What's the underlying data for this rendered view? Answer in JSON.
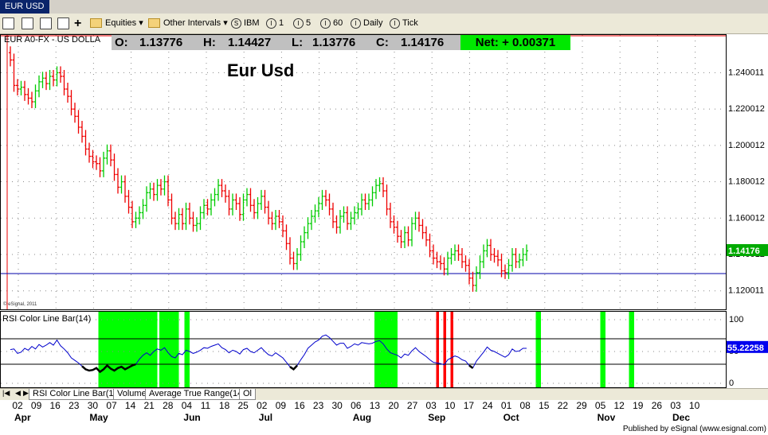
{
  "window": {
    "title": "EUR USD"
  },
  "toolbar": {
    "equities_label": "Equities",
    "interval_label": "Other Intervals",
    "symbol_label": "IBM",
    "int1": "1",
    "int5": "5",
    "int60": "60",
    "daily": "Daily",
    "tick": "Tick"
  },
  "header": {
    "symbol": "EUR A0-FX - US DOLLA",
    "open_label": "O:",
    "open": "1.13776",
    "high_label": "H:",
    "high": "1.14427",
    "low_label": "L:",
    "low": "1.13776",
    "close_label": "C:",
    "close": "1.14176",
    "net_label": "Net:",
    "net": "+ 0.00371",
    "net_color": "#00e800"
  },
  "chart_title": "Eur Usd",
  "copyright": "© eSignal, 2011",
  "rsi_label": "RSI Color Line Bar(14)",
  "tabs": [
    "RSI Color Line Bar(14)",
    "Volume",
    "Average True Range(14)",
    "Ol"
  ],
  "published": "Published by eSignal (www.esignal.com)",
  "colors": {
    "up": "#00cc00",
    "down": "#ee0000",
    "rsi_line": "#0000cc",
    "baseline": "#0000aa",
    "green_zone": "#00ff00",
    "red_zone": "#ff0000"
  },
  "chart_data": [
    {
      "type": "bar",
      "title": "Eur Usd",
      "ylim": [
        1.112,
        1.252
      ],
      "y_ticks": [
        "1.240011",
        "1.220012",
        "1.200012",
        "1.180012",
        "1.160012",
        "1.140012",
        "1.120011"
      ],
      "y_tick_values": [
        1.240011,
        1.220012,
        1.200012,
        1.180012,
        1.160012,
        1.140012,
        1.120011
      ],
      "last_price": "1.14176",
      "horizontal_line": 1.1295,
      "date_labels": [
        "02",
        "09",
        "16",
        "23",
        "30",
        "07",
        "14",
        "21",
        "28",
        "04",
        "11",
        "18",
        "25",
        "02",
        "09",
        "16",
        "23",
        "30",
        "06",
        "13",
        "20",
        "27",
        "03",
        "10",
        "17",
        "24",
        "01",
        "08",
        "15",
        "22",
        "29",
        "05",
        "12",
        "19",
        "26",
        "03",
        "10"
      ],
      "month_labels": [
        "Apr",
        "May",
        "Jun",
        "Jul",
        "Aug",
        "Sep",
        "Oct",
        "Nov",
        "Dec"
      ],
      "closes": [
        1.247,
        1.233,
        1.231,
        1.232,
        1.228,
        1.226,
        1.224,
        1.23,
        1.235,
        1.237,
        1.234,
        1.238,
        1.236,
        1.24,
        1.238,
        1.231,
        1.227,
        1.22,
        1.216,
        1.21,
        1.205,
        1.198,
        1.194,
        1.191,
        1.19,
        1.186,
        1.193,
        1.197,
        1.192,
        1.184,
        1.177,
        1.18,
        1.172,
        1.166,
        1.158,
        1.16,
        1.163,
        1.167,
        1.174,
        1.176,
        1.173,
        1.178,
        1.176,
        1.18,
        1.17,
        1.16,
        1.157,
        1.162,
        1.157,
        1.165,
        1.16,
        1.156,
        1.157,
        1.163,
        1.167,
        1.165,
        1.17,
        1.173,
        1.178,
        1.175,
        1.172,
        1.165,
        1.17,
        1.168,
        1.162,
        1.17,
        1.173,
        1.167,
        1.163,
        1.168,
        1.172,
        1.166,
        1.16,
        1.157,
        1.161,
        1.158,
        1.153,
        1.146,
        1.138,
        1.135,
        1.14,
        1.147,
        1.152,
        1.157,
        1.161,
        1.164,
        1.168,
        1.172,
        1.17,
        1.165,
        1.158,
        1.155,
        1.161,
        1.163,
        1.157,
        1.16,
        1.163,
        1.165,
        1.17,
        1.168,
        1.17,
        1.174,
        1.178,
        1.179,
        1.175,
        1.165,
        1.158,
        1.155,
        1.15,
        1.147,
        1.152,
        1.148,
        1.157,
        1.16,
        1.156,
        1.152,
        1.148,
        1.142,
        1.138,
        1.136,
        1.135,
        1.132,
        1.138,
        1.14,
        1.142,
        1.14,
        1.136,
        1.134,
        1.127,
        1.123,
        1.13,
        1.136,
        1.142,
        1.145,
        1.14,
        1.139,
        1.137,
        1.131,
        1.13,
        1.134,
        1.14,
        1.136,
        1.137,
        1.14,
        1.142
      ]
    },
    {
      "type": "line",
      "title": "RSI Color Line Bar(14)",
      "ylim": [
        0,
        100
      ],
      "y_ticks": [
        "100",
        "50",
        "0"
      ],
      "y_tick_values": [
        100,
        50,
        0
      ],
      "levels": [
        70,
        30
      ],
      "last_value": "55.22258",
      "values": [
        53,
        54,
        47,
        49,
        55,
        52,
        58,
        54,
        61,
        57,
        60,
        64,
        60,
        68,
        59,
        54,
        48,
        40,
        36,
        32,
        27,
        22,
        20,
        21,
        24,
        18,
        22,
        28,
        23,
        20,
        24,
        26,
        22,
        25,
        28,
        30,
        38,
        44,
        48,
        44,
        50,
        54,
        52,
        56,
        48,
        42,
        40,
        47,
        45,
        52,
        50,
        47,
        49,
        52,
        56,
        55,
        58,
        60,
        62,
        56,
        53,
        48,
        52,
        50,
        46,
        53,
        55,
        50,
        48,
        52,
        56,
        50,
        45,
        43,
        48,
        44,
        40,
        33,
        26,
        22,
        28,
        37,
        45,
        55,
        60,
        65,
        68,
        74,
        76,
        72,
        66,
        60,
        63,
        63,
        55,
        58,
        62,
        60,
        64,
        63,
        62,
        63,
        66,
        67,
        62,
        54,
        48,
        46,
        44,
        40,
        46,
        44,
        51,
        56,
        50,
        46,
        42,
        37,
        33,
        32,
        31,
        29,
        37,
        40,
        43,
        41,
        37,
        35,
        28,
        24,
        35,
        42,
        49,
        57,
        52,
        50,
        47,
        44,
        41,
        45,
        54,
        50,
        51,
        55,
        55
      ],
      "green_zones": [
        [
          25,
          41
        ],
        [
          42,
          47
        ],
        [
          49,
          50
        ],
        [
          102,
          108
        ],
        [
          147,
          148
        ],
        [
          165,
          166
        ],
        [
          173,
          174
        ]
      ],
      "red_zones": [
        [
          119,
          119.9
        ],
        [
          121,
          121.9
        ],
        [
          123,
          123.9
        ]
      ]
    }
  ]
}
